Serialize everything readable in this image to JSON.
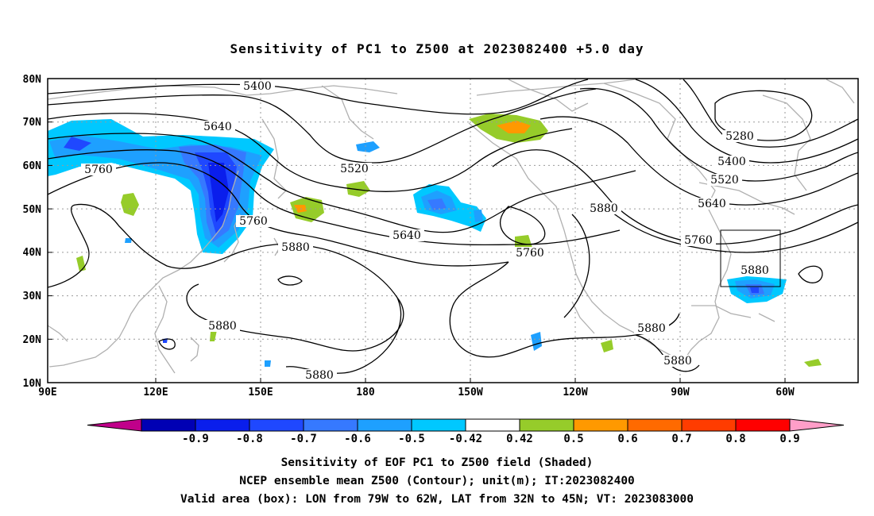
{
  "title": "Sensitivity of PC1 to Z500 at 2023082400 +5.0 day",
  "lat_labels": [
    "80N",
    "70N",
    "60N",
    "50N",
    "40N",
    "30N",
    "20N",
    "10N"
  ],
  "lon_labels": [
    "90E",
    "120E",
    "150E",
    "180",
    "150W",
    "120W",
    "90W",
    "60W"
  ],
  "contour_labels": [
    "5400",
    "5640",
    "5760",
    "5520",
    "5760",
    "5640",
    "5760",
    "5880",
    "5880",
    "5280",
    "5400",
    "5520",
    "5640",
    "5760",
    "5880",
    "5880",
    "5880",
    "5880",
    "5880"
  ],
  "colorbar": {
    "labels": [
      "-0.9",
      "-0.8",
      "-0.7",
      "-0.6",
      "-0.5",
      "-0.42",
      "0.42",
      "0.5",
      "0.6",
      "0.7",
      "0.8",
      "0.9"
    ],
    "colors": [
      "#c0008a",
      "#0000b4",
      "#0a1eec",
      "#1f48ff",
      "#3679ff",
      "#1ea0ff",
      "#00c8ff",
      "#ffffff",
      "#96cc2a",
      "#ff9900",
      "#ff6a00",
      "#ff3c00",
      "#ff0000",
      "#ff9ec8"
    ]
  },
  "caption": [
    "Sensitivity of EOF PC1 to Z500 field (Shaded)",
    "NCEP ensemble mean Z500 (Contour); unit(m); IT:2023082400",
    "Valid area (box): LON from 79W to 62W, LAT from 32N to 45N; VT: 2023083000"
  ]
}
